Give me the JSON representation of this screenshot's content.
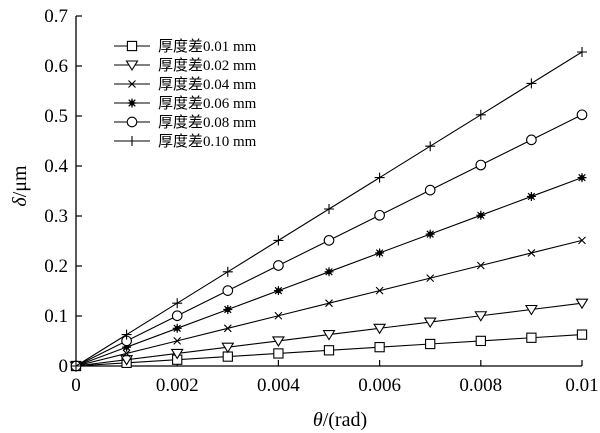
{
  "chart_data": {
    "type": "line",
    "title": "",
    "xlabel_italic": "θ",
    "xlabel_rest": "/(rad)",
    "ylabel_italic": "δ",
    "ylabel_rest": "/μm",
    "xlim": [
      0,
      0.01
    ],
    "ylim": [
      0,
      0.7
    ],
    "xticks": [
      0,
      0.002,
      0.004,
      0.006,
      0.008,
      0.01
    ],
    "xtick_labels": [
      "0",
      "0.002",
      "0.004",
      "0.006",
      "0.008",
      "0.01"
    ],
    "yticks": [
      0,
      0.1,
      0.2,
      0.3,
      0.4,
      0.5,
      0.6,
      0.7
    ],
    "ytick_labels": [
      "0",
      "0.1",
      "0.2",
      "0.3",
      "0.4",
      "0.5",
      "0.6",
      "0.7"
    ],
    "grid": false,
    "legend_position": "top-left",
    "x": [
      0,
      0.001,
      0.002,
      0.003,
      0.004,
      0.005,
      0.006,
      0.007,
      0.008,
      0.009,
      0.01
    ],
    "series": [
      {
        "name": "厚度差0.01 mm",
        "marker": "square",
        "values": [
          0,
          0.0063,
          0.0126,
          0.0188,
          0.0251,
          0.0314,
          0.0377,
          0.044,
          0.0502,
          0.0565,
          0.0628
        ]
      },
      {
        "name": "厚度差0.02 mm",
        "marker": "triangle-down",
        "values": [
          0,
          0.0126,
          0.0251,
          0.0377,
          0.0502,
          0.0628,
          0.0754,
          0.0879,
          0.1005,
          0.113,
          0.1256
        ]
      },
      {
        "name": "厚度差0.04 mm",
        "marker": "x",
        "values": [
          0,
          0.0251,
          0.0502,
          0.0754,
          0.1005,
          0.1256,
          0.1507,
          0.1758,
          0.201,
          0.2261,
          0.2512
        ]
      },
      {
        "name": "厚度差0.06 mm",
        "marker": "star",
        "values": [
          0,
          0.0377,
          0.0754,
          0.113,
          0.1507,
          0.1884,
          0.2261,
          0.2638,
          0.3014,
          0.3391,
          0.3768
        ]
      },
      {
        "name": "厚度差0.08 mm",
        "marker": "circle",
        "values": [
          0,
          0.0502,
          0.1005,
          0.1507,
          0.201,
          0.2512,
          0.3014,
          0.3517,
          0.4019,
          0.4522,
          0.5024
        ]
      },
      {
        "name": "厚度差0.10 mm",
        "marker": "plus",
        "values": [
          0,
          0.0628,
          0.1256,
          0.1884,
          0.2512,
          0.314,
          0.3768,
          0.4396,
          0.5024,
          0.5652,
          0.628
        ]
      }
    ]
  }
}
